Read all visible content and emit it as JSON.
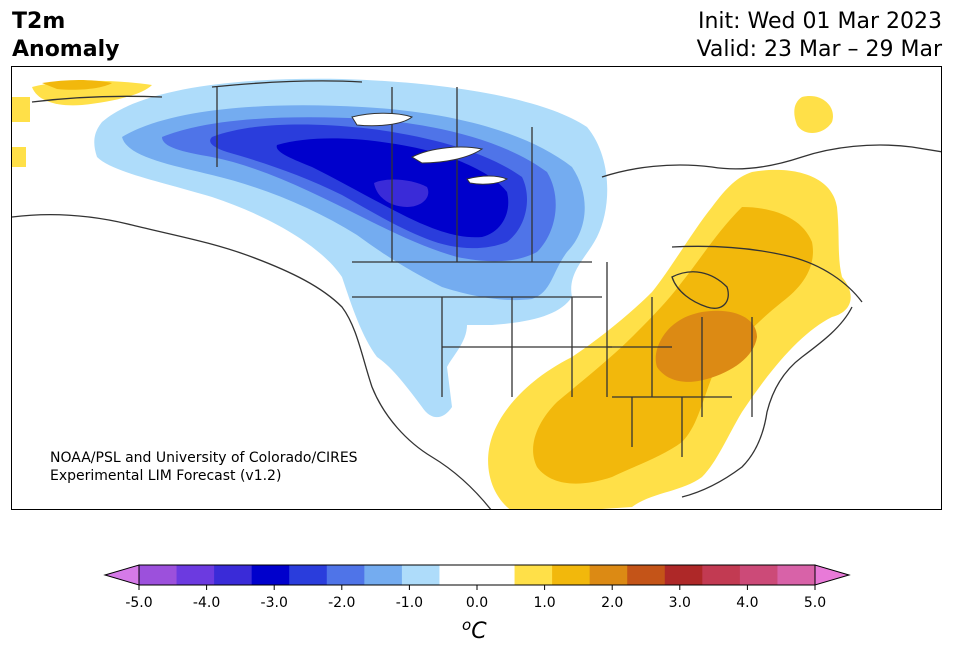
{
  "title": {
    "variable": "T2m",
    "subtitle": "Anomaly"
  },
  "run": {
    "init": "Init: Wed 01 Mar 2023",
    "valid": "Valid: 23 Mar – 29 Mar"
  },
  "credit": {
    "line1": "NOAA/PSL and University of Colorado/CIRES",
    "line2": "Experimental LIM Forecast (v1.2)"
  },
  "colorbar": {
    "unit_base": "C",
    "unit_superscript": "o",
    "ticks": [
      "-5.0",
      "-4.0",
      "-3.0",
      "-2.0",
      "-1.0",
      "0.0",
      "1.0",
      "2.0",
      "3.0",
      "4.0",
      "5.0"
    ],
    "min": -5.0,
    "max": 5.0,
    "step": 0.5,
    "under_color": "#d57ae8",
    "over_color": "#e87ad8",
    "colors": [
      "#d57ae8",
      "#9c50dc",
      "#6c3ae0",
      "#3a2bd8",
      "#0000cc",
      "#2a3ddc",
      "#4f74e8",
      "#74acf0",
      "#aedcfa",
      "#ffffff",
      "#ffffff",
      "#ffe048",
      "#f2b80c",
      "#dc8a14",
      "#c45418",
      "#ae2828",
      "#c23a52",
      "#cc4a78",
      "#d862a8",
      "#e87ad8"
    ]
  }
}
